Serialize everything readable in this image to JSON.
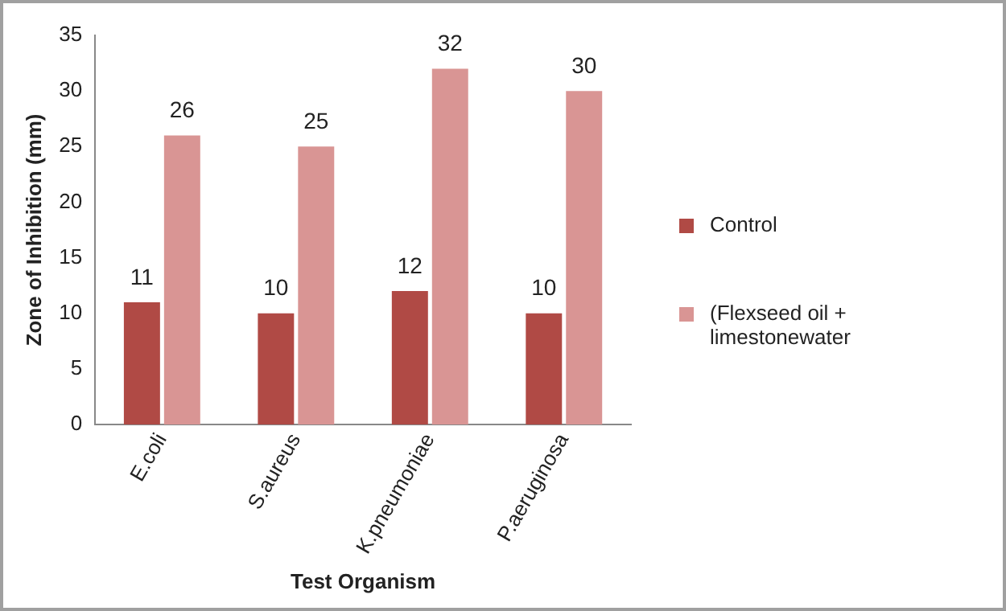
{
  "chart_data": {
    "type": "bar",
    "xlabel": "Test Organism",
    "ylabel": "Zone of Inhibition (mm)",
    "categories": [
      "E.coli",
      "S.aureus",
      "K.pneumoniae",
      "P.aeruginosa"
    ],
    "series": [
      {
        "name": "Control",
        "color": "#b04a45",
        "values": [
          11,
          10,
          12,
          10
        ]
      },
      {
        "name": "(Flexseed oil + limestonewater",
        "color": "#d99594",
        "values": [
          26,
          25,
          32,
          30
        ]
      }
    ],
    "ylim": [
      0,
      35
    ],
    "yticks": [
      0,
      5,
      10,
      15,
      20,
      25,
      30,
      35
    ],
    "grid": false,
    "legend": "right",
    "data_labels": true
  }
}
